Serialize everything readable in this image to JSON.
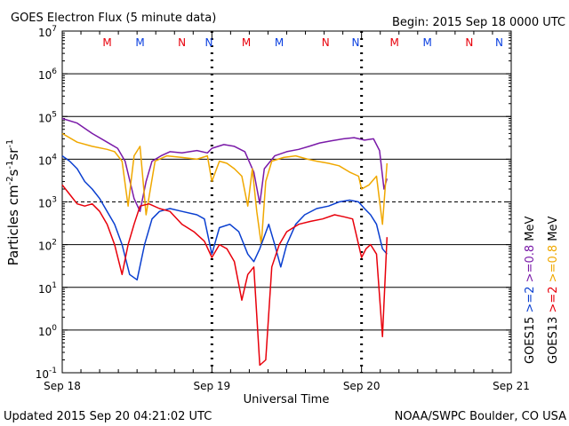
{
  "header": {
    "title": "GOES Electron Flux (5 minute data)",
    "begin": "Begin: 2015 Sep 18 0000 UTC"
  },
  "footer": {
    "updated": "Updated 2015 Sep 20 04:21:02 UTC",
    "credit": "NOAA/SWPC Boulder, CO USA"
  },
  "chart_data": {
    "type": "line",
    "title": "GOES Electron Flux (5 minute data)",
    "xlabel": "Universal Time",
    "ylabel": "Particles cm^-2 s^-1 sr^-1",
    "ylabel_parts": {
      "base": "Particles cm",
      "e1": "-2",
      "mid1": "s",
      "e2": "-1",
      "mid2": "sr",
      "e3": "-1"
    },
    "y_scale": "log",
    "ylim": [
      0.1,
      10000000
    ],
    "xlim_days": [
      0,
      3
    ],
    "x_ticks": [
      "Sep 18",
      "Sep 19",
      "Sep 20",
      "Sep 21"
    ],
    "y_ticks": [
      {
        "value": 10000000,
        "base": "10",
        "exp": "7"
      },
      {
        "value": 1000000,
        "base": "10",
        "exp": "6"
      },
      {
        "value": 100000,
        "base": "10",
        "exp": "5"
      },
      {
        "value": 10000,
        "base": "10",
        "exp": "4"
      },
      {
        "value": 1000,
        "base": "10",
        "exp": "3"
      },
      {
        "value": 100,
        "base": "10",
        "exp": "2"
      },
      {
        "value": 10,
        "base": "10",
        "exp": "1"
      },
      {
        "value": 1,
        "base": "10",
        "exp": "0"
      },
      {
        "value": 0.1,
        "base": "10",
        "exp": "-1"
      }
    ],
    "solid_gridlines": [
      1000000,
      100000,
      10000,
      100,
      10,
      1
    ],
    "dashed_gridlines": [
      1000
    ],
    "markers": [
      {
        "label": "M",
        "day": 0.3,
        "color": "#e8000b"
      },
      {
        "label": "M",
        "day": 0.52,
        "color": "#0a3fe0"
      },
      {
        "label": "N",
        "day": 0.8,
        "color": "#e8000b"
      },
      {
        "label": "N",
        "day": 0.98,
        "color": "#0a3fe0"
      },
      {
        "label": "M",
        "day": 1.23,
        "color": "#e8000b"
      },
      {
        "label": "M",
        "day": 1.45,
        "color": "#0a3fe0"
      },
      {
        "label": "N",
        "day": 1.76,
        "color": "#e8000b"
      },
      {
        "label": "N",
        "day": 1.96,
        "color": "#0a3fe0"
      },
      {
        "label": "M",
        "day": 2.22,
        "color": "#e8000b"
      },
      {
        "label": "M",
        "day": 2.44,
        "color": "#0a3fe0"
      },
      {
        "label": "N",
        "day": 2.72,
        "color": "#e8000b"
      },
      {
        "label": "N",
        "day": 2.92,
        "color": "#0a3fe0"
      }
    ],
    "day_marker_dashes": [
      1,
      2
    ],
    "series": [
      {
        "name": ">=0.8 MeV",
        "satellite": "GOES15",
        "color": "#7a1aa8",
        "points": [
          [
            0,
            90000
          ],
          [
            0.1,
            70000
          ],
          [
            0.2,
            40000
          ],
          [
            0.3,
            25000
          ],
          [
            0.37,
            18000
          ],
          [
            0.42,
            9000
          ],
          [
            0.48,
            1200
          ],
          [
            0.52,
            600
          ],
          [
            0.56,
            3000
          ],
          [
            0.6,
            9000
          ],
          [
            0.66,
            12000
          ],
          [
            0.72,
            15000
          ],
          [
            0.8,
            14000
          ],
          [
            0.9,
            16000
          ],
          [
            0.97,
            14000
          ],
          [
            1.0,
            18000
          ],
          [
            1.08,
            22000
          ],
          [
            1.15,
            20000
          ],
          [
            1.22,
            15000
          ],
          [
            1.28,
            5000
          ],
          [
            1.32,
            900
          ],
          [
            1.35,
            6000
          ],
          [
            1.42,
            12000
          ],
          [
            1.5,
            15000
          ],
          [
            1.58,
            17000
          ],
          [
            1.65,
            20000
          ],
          [
            1.72,
            24000
          ],
          [
            1.8,
            27000
          ],
          [
            1.88,
            30000
          ],
          [
            1.95,
            32000
          ],
          [
            2.02,
            28000
          ],
          [
            2.08,
            30000
          ],
          [
            2.12,
            16000
          ],
          [
            2.15,
            2000
          ],
          [
            2.17,
            3500
          ]
        ]
      },
      {
        "name": ">=0.8 MeV",
        "satellite": "GOES13",
        "color": "#f0a800",
        "points": [
          [
            0,
            40000
          ],
          [
            0.1,
            25000
          ],
          [
            0.2,
            20000
          ],
          [
            0.3,
            17000
          ],
          [
            0.35,
            15000
          ],
          [
            0.4,
            9000
          ],
          [
            0.44,
            800
          ],
          [
            0.48,
            12000
          ],
          [
            0.52,
            20000
          ],
          [
            0.56,
            500
          ],
          [
            0.62,
            9000
          ],
          [
            0.7,
            12000
          ],
          [
            0.8,
            11000
          ],
          [
            0.9,
            10000
          ],
          [
            0.97,
            12000
          ],
          [
            1.0,
            3000
          ],
          [
            1.05,
            9000
          ],
          [
            1.1,
            8000
          ],
          [
            1.15,
            6000
          ],
          [
            1.2,
            4000
          ],
          [
            1.24,
            800
          ],
          [
            1.27,
            6000
          ],
          [
            1.3,
            600
          ],
          [
            1.33,
            100
          ],
          [
            1.36,
            3000
          ],
          [
            1.4,
            9000
          ],
          [
            1.48,
            11000
          ],
          [
            1.56,
            12000
          ],
          [
            1.64,
            10000
          ],
          [
            1.7,
            9000
          ],
          [
            1.78,
            8000
          ],
          [
            1.85,
            7000
          ],
          [
            1.92,
            5000
          ],
          [
            1.98,
            4000
          ],
          [
            2.0,
            2000
          ],
          [
            2.05,
            2500
          ],
          [
            2.1,
            4000
          ],
          [
            2.14,
            300
          ],
          [
            2.17,
            8000
          ]
        ]
      },
      {
        "name": ">=2 MeV",
        "satellite": "GOES15",
        "color": "#0a3fd0",
        "points": [
          [
            0,
            12000
          ],
          [
            0.05,
            9000
          ],
          [
            0.1,
            6000
          ],
          [
            0.15,
            3000
          ],
          [
            0.2,
            2000
          ],
          [
            0.25,
            1200
          ],
          [
            0.3,
            600
          ],
          [
            0.35,
            300
          ],
          [
            0.4,
            100
          ],
          [
            0.45,
            20
          ],
          [
            0.5,
            15
          ],
          [
            0.55,
            100
          ],
          [
            0.6,
            400
          ],
          [
            0.65,
            600
          ],
          [
            0.72,
            700
          ],
          [
            0.8,
            600
          ],
          [
            0.9,
            500
          ],
          [
            0.95,
            400
          ],
          [
            1.0,
            60
          ],
          [
            1.05,
            250
          ],
          [
            1.12,
            300
          ],
          [
            1.18,
            200
          ],
          [
            1.24,
            60
          ],
          [
            1.28,
            40
          ],
          [
            1.32,
            80
          ],
          [
            1.38,
            300
          ],
          [
            1.42,
            100
          ],
          [
            1.46,
            30
          ],
          [
            1.5,
            100
          ],
          [
            1.56,
            300
          ],
          [
            1.62,
            500
          ],
          [
            1.7,
            700
          ],
          [
            1.78,
            800
          ],
          [
            1.85,
            1000
          ],
          [
            1.92,
            1100
          ],
          [
            1.98,
            1000
          ],
          [
            2.02,
            700
          ],
          [
            2.06,
            500
          ],
          [
            2.1,
            300
          ],
          [
            2.14,
            80
          ],
          [
            2.17,
            60
          ]
        ]
      },
      {
        "name": ">=2 MeV",
        "satellite": "GOES13",
        "color": "#e8000b",
        "points": [
          [
            0,
            2500
          ],
          [
            0.05,
            1500
          ],
          [
            0.1,
            900
          ],
          [
            0.15,
            800
          ],
          [
            0.2,
            900
          ],
          [
            0.25,
            600
          ],
          [
            0.3,
            300
          ],
          [
            0.35,
            100
          ],
          [
            0.4,
            20
          ],
          [
            0.44,
            100
          ],
          [
            0.48,
            300
          ],
          [
            0.52,
            800
          ],
          [
            0.58,
            900
          ],
          [
            0.65,
            700
          ],
          [
            0.72,
            600
          ],
          [
            0.8,
            300
          ],
          [
            0.88,
            200
          ],
          [
            0.95,
            120
          ],
          [
            1.0,
            50
          ],
          [
            1.05,
            100
          ],
          [
            1.1,
            80
          ],
          [
            1.15,
            40
          ],
          [
            1.2,
            5
          ],
          [
            1.24,
            20
          ],
          [
            1.28,
            30
          ],
          [
            1.32,
            0.15
          ],
          [
            1.36,
            0.2
          ],
          [
            1.4,
            30
          ],
          [
            1.45,
            100
          ],
          [
            1.5,
            200
          ],
          [
            1.58,
            300
          ],
          [
            1.66,
            350
          ],
          [
            1.74,
            400
          ],
          [
            1.82,
            500
          ],
          [
            1.88,
            450
          ],
          [
            1.94,
            400
          ],
          [
            2.0,
            50
          ],
          [
            2.03,
            80
          ],
          [
            2.06,
            100
          ],
          [
            2.1,
            60
          ],
          [
            2.14,
            0.7
          ],
          [
            2.17,
            150
          ]
        ]
      }
    ],
    "legend": [
      {
        "sat": "GOES15",
        "gt2": ">=2",
        "gt08": ">=0.8",
        "unit": "MeV",
        "color2": "#0a3fd0",
        "color08": "#7a1aa8"
      },
      {
        "sat": "GOES13",
        "gt2": ">=2",
        "gt08": ">=0.8",
        "unit": "MeV",
        "color2": "#e8000b",
        "color08": "#f0a800"
      }
    ],
    "legend_placement": "right-outside",
    "grid": true
  }
}
